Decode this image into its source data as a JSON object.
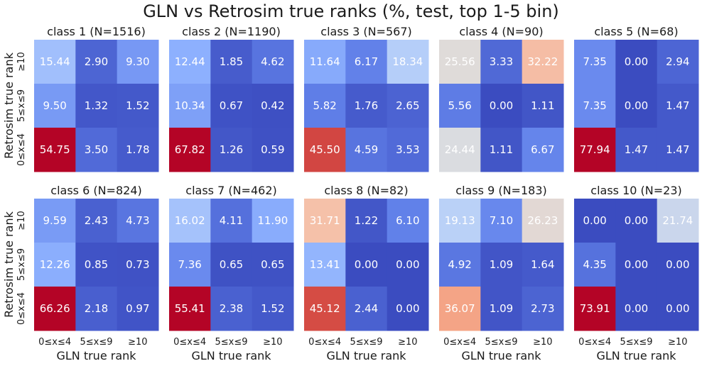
{
  "title": "GLN vs Retrosim true ranks (%, test, top 1-5 bin)",
  "chart_data": {
    "type": "heatmap",
    "title": "GLN vs Retrosim true ranks (%, test, top 1-5 bin)",
    "xlabel": "GLN true rank",
    "ylabel": "Retrosim true rank",
    "x_categories": [
      "0≤x≤4",
      "5≤x≤9",
      "≥10"
    ],
    "y_categories_top_to_bottom": [
      "≥10",
      "5≤x≤9",
      "0≤x≤4"
    ],
    "colormap": "coolwarm",
    "color_range": [
      0,
      50
    ],
    "panels": [
      {
        "title": "class 1 (N=1516)",
        "values": [
          [
            15.44,
            2.9,
            9.3
          ],
          [
            9.5,
            1.32,
            1.52
          ],
          [
            54.75,
            3.5,
            1.78
          ]
        ]
      },
      {
        "title": "class 2 (N=1190)",
        "values": [
          [
            12.44,
            1.85,
            4.62
          ],
          [
            10.34,
            0.67,
            0.42
          ],
          [
            67.82,
            1.26,
            0.59
          ]
        ]
      },
      {
        "title": "class 3 (N=567)",
        "values": [
          [
            11.64,
            6.17,
            18.34
          ],
          [
            5.82,
            1.76,
            2.65
          ],
          [
            45.5,
            4.59,
            3.53
          ]
        ]
      },
      {
        "title": "class 4 (N=90)",
        "values": [
          [
            25.56,
            3.33,
            32.22
          ],
          [
            5.56,
            0.0,
            1.11
          ],
          [
            24.44,
            1.11,
            6.67
          ]
        ]
      },
      {
        "title": "class 5 (N=68)",
        "values": [
          [
            7.35,
            0.0,
            2.94
          ],
          [
            7.35,
            0.0,
            1.47
          ],
          [
            77.94,
            1.47,
            1.47
          ]
        ]
      },
      {
        "title": "class 6 (N=824)",
        "values": [
          [
            9.59,
            2.43,
            4.73
          ],
          [
            12.26,
            0.85,
            0.73
          ],
          [
            66.26,
            2.18,
            0.97
          ]
        ]
      },
      {
        "title": "class 7 (N=462)",
        "values": [
          [
            16.02,
            4.11,
            11.9
          ],
          [
            7.36,
            0.65,
            0.65
          ],
          [
            55.41,
            2.38,
            1.52
          ]
        ]
      },
      {
        "title": "class 8 (N=82)",
        "values": [
          [
            31.71,
            1.22,
            6.1
          ],
          [
            13.41,
            0.0,
            0.0
          ],
          [
            45.12,
            2.44,
            0.0
          ]
        ]
      },
      {
        "title": "class 9 (N=183)",
        "values": [
          [
            19.13,
            7.1,
            26.23
          ],
          [
            4.92,
            1.09,
            1.64
          ],
          [
            36.07,
            1.09,
            2.73
          ]
        ]
      },
      {
        "title": "class 10 (N=23)",
        "values": [
          [
            0.0,
            0.0,
            21.74
          ],
          [
            4.35,
            0.0,
            0.0
          ],
          [
            73.91,
            0.0,
            0.0
          ]
        ]
      }
    ]
  }
}
